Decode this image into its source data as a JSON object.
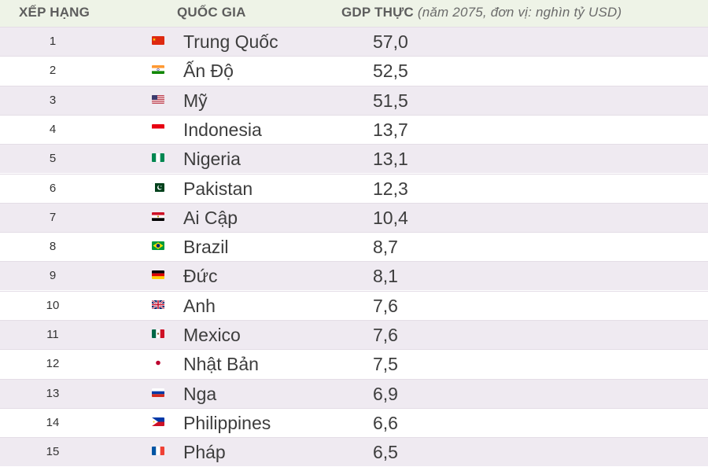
{
  "header": {
    "rank": "XẾP HẠNG",
    "country": "QUỐC GIA",
    "gdp": "GDP THỰC",
    "gdp_note": "(năm 2075, đơn vị: nghìn tỷ USD)"
  },
  "chart_data": {
    "type": "table",
    "columns": [
      "XẾP HẠNG",
      "QUỐC GIA",
      "GDP THỰC (năm 2075, đơn vị: nghìn tỷ USD)"
    ],
    "rows": [
      {
        "rank": "1",
        "country": "Trung Quốc",
        "gdp": "57,0",
        "flag": "china-flag-icon"
      },
      {
        "rank": "2",
        "country": "Ấn Độ",
        "gdp": "52,5",
        "flag": "india-flag-icon"
      },
      {
        "rank": "3",
        "country": "Mỹ",
        "gdp": "51,5",
        "flag": "usa-flag-icon"
      },
      {
        "rank": "4",
        "country": "Indonesia",
        "gdp": "13,7",
        "flag": "indonesia-flag-icon"
      },
      {
        "rank": "5",
        "country": "Nigeria",
        "gdp": "13,1",
        "flag": "nigeria-flag-icon"
      },
      {
        "rank": "6",
        "country": "Pakistan",
        "gdp": "12,3",
        "flag": "pakistan-flag-icon"
      },
      {
        "rank": "7",
        "country": "Ai Cập",
        "gdp": "10,4",
        "flag": "egypt-flag-icon"
      },
      {
        "rank": "8",
        "country": "Brazil",
        "gdp": "8,7",
        "flag": "brazil-flag-icon"
      },
      {
        "rank": "9",
        "country": "Đức",
        "gdp": "8,1",
        "flag": "germany-flag-icon"
      },
      {
        "rank": "10",
        "country": "Anh",
        "gdp": "7,6",
        "flag": "uk-flag-icon"
      },
      {
        "rank": "11",
        "country": "Mexico",
        "gdp": "7,6",
        "flag": "mexico-flag-icon"
      },
      {
        "rank": "12",
        "country": "Nhật Bản",
        "gdp": "7,5",
        "flag": "japan-flag-icon"
      },
      {
        "rank": "13",
        "country": "Nga",
        "gdp": "6,9",
        "flag": "russia-flag-icon"
      },
      {
        "rank": "14",
        "country": "Philippines",
        "gdp": "6,6",
        "flag": "philippines-flag-icon"
      },
      {
        "rank": "15",
        "country": "Pháp",
        "gdp": "6,5",
        "flag": "france-flag-icon"
      }
    ]
  },
  "colors": {
    "header_bg": "#eef3e7",
    "row_alt_bg": "#efeaf1",
    "row_bg": "#ffffff",
    "divider": "#e4dde6"
  }
}
